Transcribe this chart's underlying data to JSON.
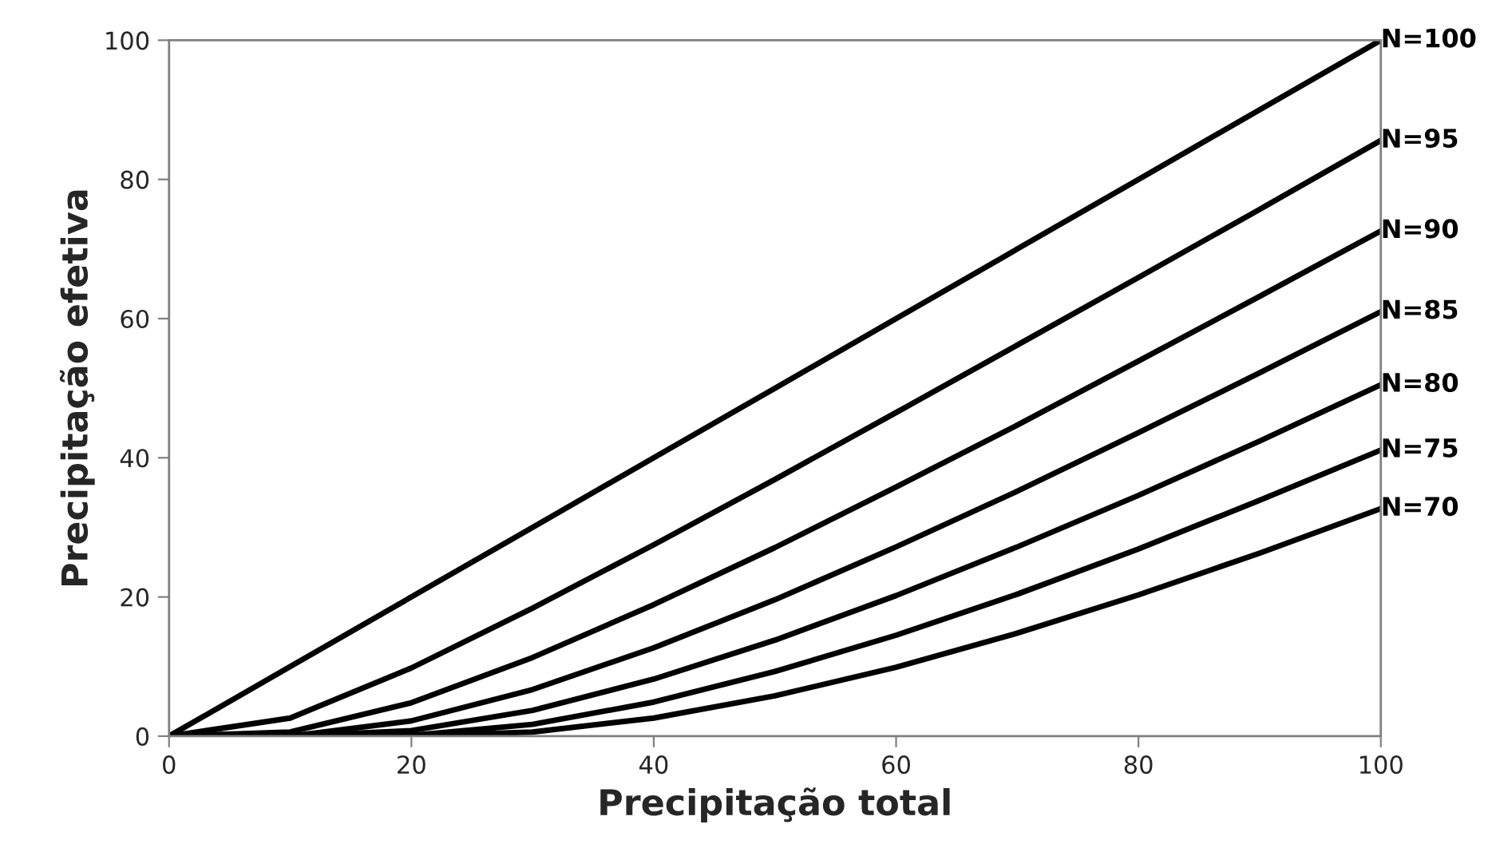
{
  "chart_data": {
    "type": "line",
    "xlabel": "Precipitação total",
    "ylabel": "Precipitação efetiva",
    "x": [
      0,
      10,
      20,
      30,
      40,
      50,
      60,
      70,
      80,
      90,
      100
    ],
    "series": [
      {
        "name": "N=100",
        "color": "#000000",
        "values": [
          0,
          10,
          20,
          30,
          40,
          50,
          60,
          70,
          80,
          90,
          100
        ]
      },
      {
        "name": "N=95",
        "color": "#000000",
        "values": [
          0,
          2.6,
          9.8,
          18.4,
          27.5,
          36.9,
          46.5,
          56.2,
          65.9,
          75.7,
          85.6
        ]
      },
      {
        "name": "N=90",
        "color": "#000000",
        "values": [
          0,
          0.6,
          4.8,
          11.3,
          18.9,
          27.1,
          35.8,
          44.7,
          53.9,
          63.2,
          72.6
        ]
      },
      {
        "name": "N=85",
        "color": "#000000",
        "values": [
          0,
          0,
          2.2,
          6.7,
          12.7,
          19.6,
          27.2,
          35.2,
          43.6,
          52.2,
          61.0
        ]
      },
      {
        "name": "N=80",
        "color": "#000000",
        "values": [
          0,
          0,
          0.8,
          3.7,
          8.2,
          13.8,
          20.2,
          27.2,
          34.6,
          42.4,
          50.5
        ]
      },
      {
        "name": "N=75",
        "color": "#000000",
        "values": [
          0,
          0,
          0.1,
          1.7,
          4.9,
          9.3,
          14.5,
          20.4,
          26.9,
          33.9,
          41.1
        ]
      },
      {
        "name": "N=70",
        "color": "#000000",
        "values": [
          0,
          0,
          0,
          0.6,
          2.6,
          5.8,
          9.9,
          14.8,
          20.3,
          26.3,
          32.7
        ]
      }
    ],
    "xlim": [
      0,
      100
    ],
    "ylim": [
      0,
      100
    ],
    "xticks": [
      0,
      20,
      40,
      60,
      80,
      100
    ],
    "yticks": [
      0,
      20,
      40,
      60,
      80,
      100
    ],
    "grid": false,
    "legend": false,
    "marker": "none",
    "line_style": "solid"
  }
}
